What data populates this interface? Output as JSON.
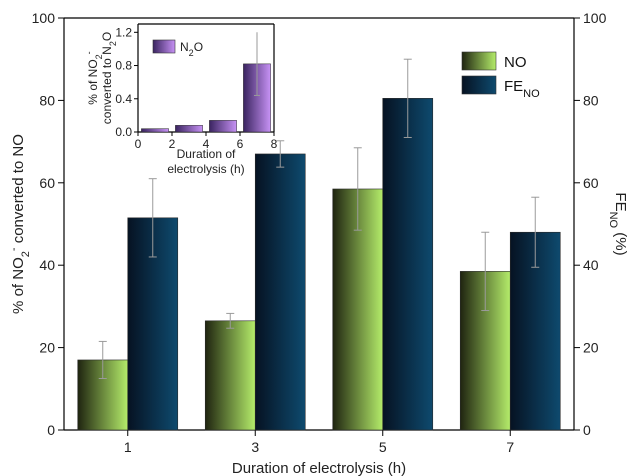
{
  "colors": {
    "no_start": "#1f2410",
    "no_end": "#b4ec6a",
    "fe_start": "#061222",
    "fe_end": "#0e4a6e",
    "n2o_start": "#3a2460",
    "n2o_end": "#c792f5",
    "error_bar": "#9a9a9a"
  },
  "chart_data": [
    {
      "type": "bar",
      "xlabel": "Duration of electrolysis (h)",
      "ylabel_left": {
        "pre": "% of NO",
        "sub": "2",
        "sup": "-",
        "post": " converted to NO"
      },
      "ylabel_right": {
        "pre": "FE",
        "sub": "NO",
        "post": " (%)"
      },
      "categories": [
        "1",
        "3",
        "5",
        "7"
      ],
      "ylim": [
        0,
        100
      ],
      "yticks": [
        "0",
        "20",
        "40",
        "60",
        "80",
        "100"
      ],
      "series": [
        {
          "name": "NO",
          "values": [
            17.0,
            26.5,
            58.5,
            38.5
          ],
          "errors": [
            4.5,
            1.8,
            10.0,
            9.5
          ],
          "axis": "left"
        },
        {
          "name": "FE",
          "name_sub": "NO",
          "values": [
            51.5,
            67.0,
            80.5,
            48.0
          ],
          "errors": [
            9.5,
            3.2,
            9.5,
            8.5
          ],
          "axis": "right"
        }
      ],
      "legend_position": "top-right",
      "grid": false
    },
    {
      "type": "bar",
      "inset": true,
      "xlabel_lines": [
        "Duration of",
        "electrolysis (h)"
      ],
      "ylabel_lines": [
        {
          "pre": "% of NO",
          "sub": "2",
          "sup": "-"
        },
        {
          "pre": "converted to N",
          "sub": "2",
          "post": "O"
        }
      ],
      "x": [
        1,
        3,
        5,
        7
      ],
      "xlim": [
        0,
        8
      ],
      "xticks": [
        "0",
        "2",
        "4",
        "6",
        "8"
      ],
      "ylim": [
        0,
        1.3
      ],
      "yticks": [
        "0.0",
        "0.4",
        "0.8",
        "1.2"
      ],
      "series": [
        {
          "name_pre": "N",
          "name_sub": "2",
          "name_post": "O",
          "values": [
            0.04,
            0.08,
            0.14,
            0.82
          ],
          "errors": [
            0.0,
            0.0,
            0.0,
            0.38
          ]
        }
      ],
      "legend_position": "top-left",
      "grid": false
    }
  ]
}
